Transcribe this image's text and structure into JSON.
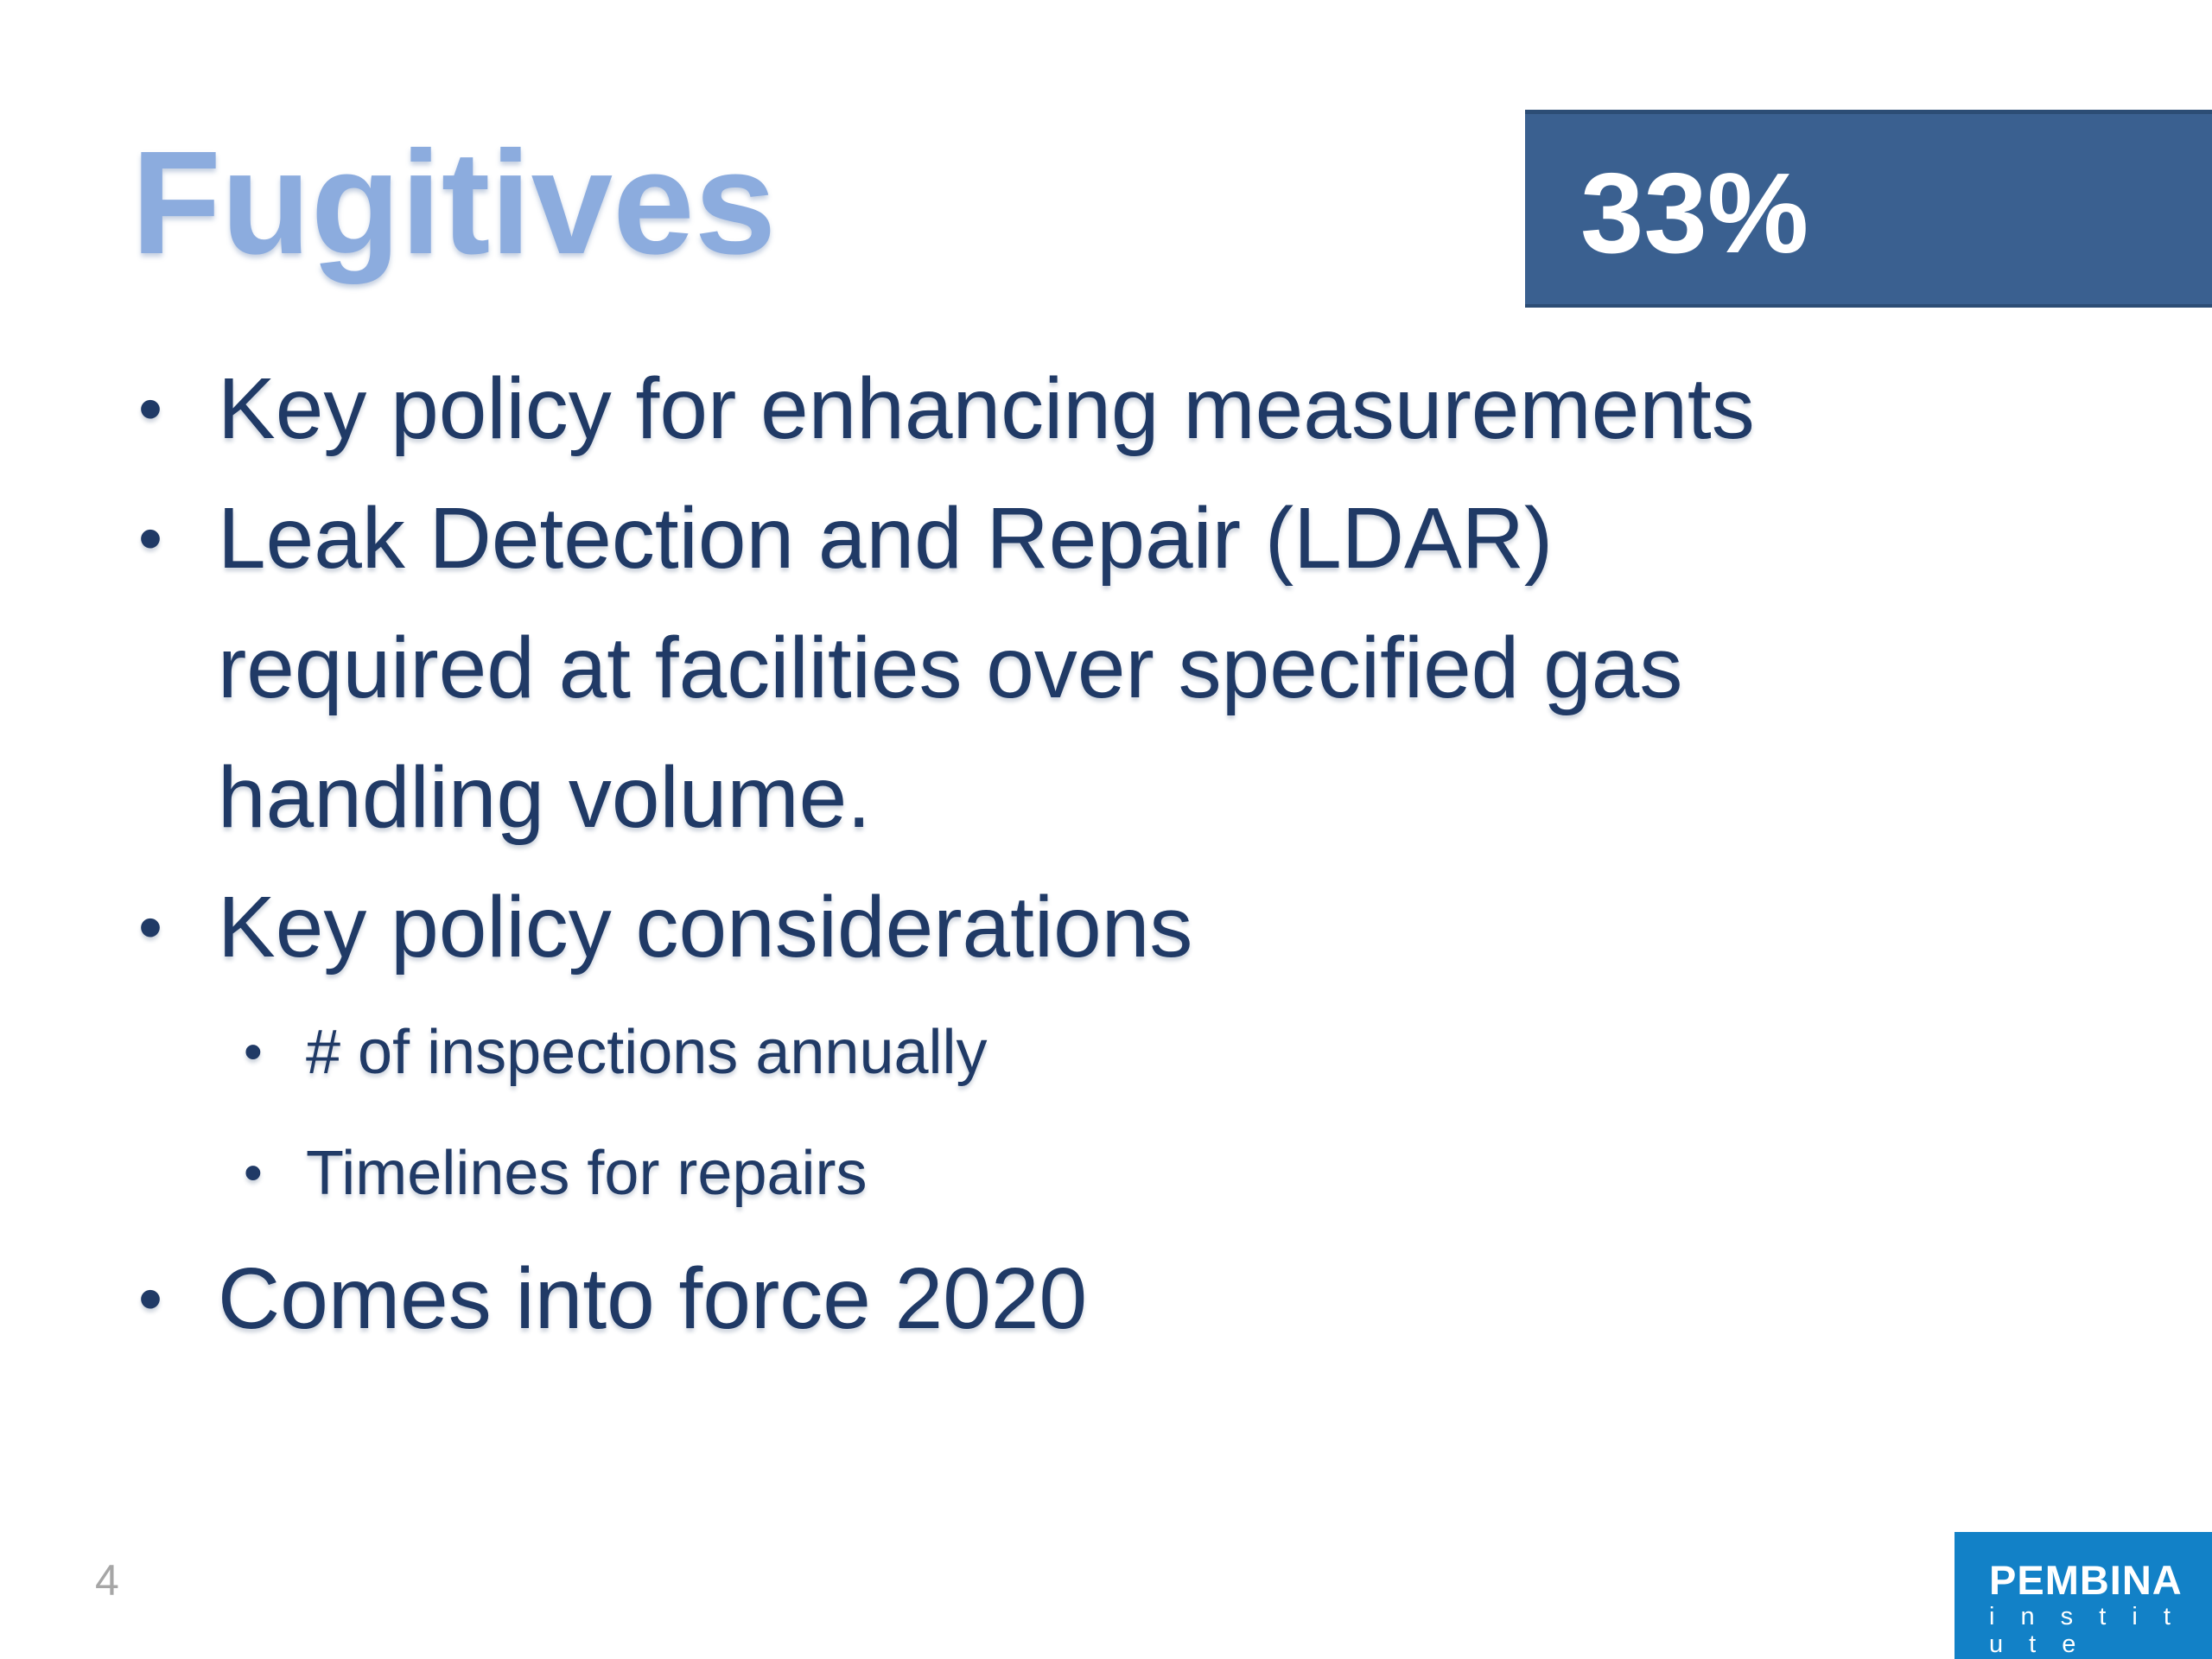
{
  "slide": {
    "title": "Fugitives",
    "badge": {
      "value": "33%"
    },
    "bullet_char": "•",
    "bullets": [
      {
        "level": 1,
        "lines": [
          "Key policy for enhancing measurements"
        ]
      },
      {
        "level": 1,
        "lines": [
          "Leak Detection and Repair (LDAR)",
          "required at facilities over specified gas",
          "handling volume."
        ]
      },
      {
        "level": 1,
        "lines": [
          "Key policy considerations"
        ]
      },
      {
        "level": 2,
        "lines": [
          "# of inspections annually"
        ]
      },
      {
        "level": 2,
        "lines": [
          "Timelines for repairs"
        ]
      },
      {
        "level": 1,
        "lines": [
          "Comes into force 2020"
        ]
      }
    ],
    "page_number": "4",
    "logo": {
      "name": "PEMBINA",
      "subtitle": "i n s t i t u t e"
    }
  },
  "colors": {
    "title_blue": "#8CACDE",
    "body_text_navy": "#203A66",
    "badge_background": "#3A6090",
    "badge_border": "#2C4D75",
    "badge_text": "#FFFFFF",
    "logo_background": "#1281C7",
    "logo_text": "#FFFFFF",
    "page_number_gray": "#A6A6A6",
    "slide_background": "#FFFFFF"
  }
}
